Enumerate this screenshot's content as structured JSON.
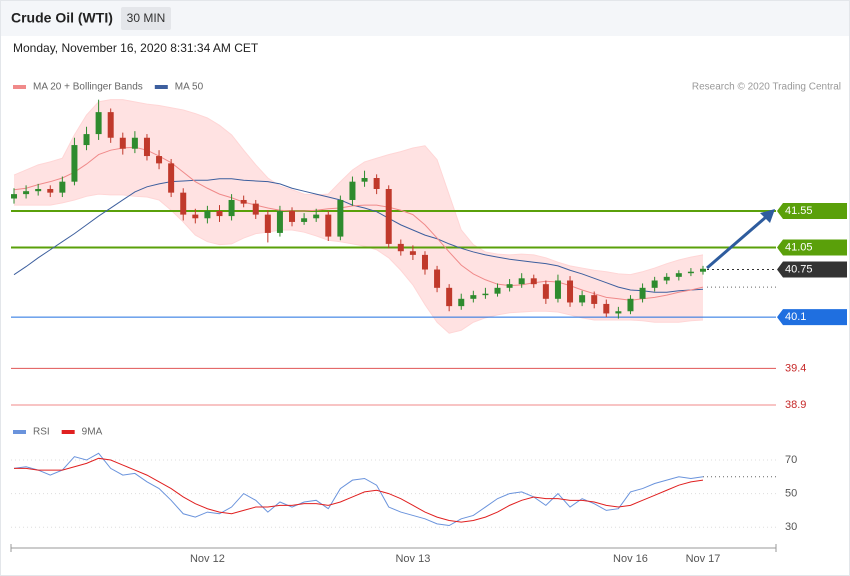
{
  "header": {
    "title": "Crude Oil (WTI)",
    "timeframe": "30 MIN",
    "timestamp": "Monday, November 16, 2020 8:31:34 AM CET"
  },
  "chart_data": [
    {
      "type": "candlestick",
      "source": "Research © 2020 Trading Central",
      "categories": [
        null,
        null,
        null,
        null,
        null,
        null,
        null,
        null,
        null,
        null,
        null,
        null,
        null,
        null,
        null,
        null,
        "Nov 12",
        null,
        null,
        null,
        null,
        null,
        null,
        null,
        null,
        null,
        null,
        null,
        null,
        null,
        null,
        null,
        null,
        "Nov 13",
        null,
        null,
        null,
        null,
        null,
        null,
        null,
        null,
        null,
        null,
        null,
        null,
        null,
        null,
        null,
        null,
        null,
        "Nov 16",
        null,
        null,
        null,
        null,
        null,
        "Nov 17"
      ],
      "open": [
        41.72,
        41.78,
        41.82,
        41.85,
        41.8,
        41.95,
        42.45,
        42.6,
        42.9,
        42.55,
        42.4,
        42.55,
        42.3,
        42.2,
        41.8,
        41.5,
        41.45,
        41.55,
        41.48,
        41.7,
        41.65,
        41.5,
        41.25,
        41.55,
        41.4,
        41.45,
        41.5,
        41.2,
        41.7,
        41.95,
        42.0,
        41.85,
        41.1,
        41.0,
        40.95,
        40.75,
        40.5,
        40.25,
        40.35,
        40.4,
        40.42,
        40.5,
        40.55,
        40.63,
        40.55,
        40.35,
        40.6,
        40.3,
        40.4,
        40.28,
        40.15,
        40.18,
        40.35,
        40.5,
        40.6,
        40.65,
        40.7,
        40.72
      ],
      "high": [
        41.86,
        41.9,
        41.92,
        41.9,
        42.02,
        42.55,
        42.7,
        43.07,
        42.95,
        42.62,
        42.64,
        42.6,
        42.38,
        42.26,
        41.86,
        41.58,
        41.62,
        41.63,
        41.78,
        41.76,
        41.7,
        41.56,
        41.62,
        41.6,
        41.52,
        41.58,
        41.55,
        41.76,
        42.02,
        42.1,
        42.05,
        41.9,
        41.16,
        41.08,
        41.0,
        40.8,
        40.55,
        40.42,
        40.46,
        40.5,
        40.56,
        40.62,
        40.7,
        40.68,
        40.6,
        40.68,
        40.66,
        40.46,
        40.45,
        40.34,
        40.24,
        40.4,
        40.56,
        40.65,
        40.7,
        40.74,
        40.77,
        40.8
      ],
      "low": [
        41.65,
        41.72,
        41.76,
        41.74,
        41.74,
        41.9,
        42.38,
        42.52,
        42.48,
        42.32,
        42.34,
        42.24,
        42.12,
        41.74,
        41.42,
        41.38,
        41.38,
        41.4,
        41.42,
        41.6,
        41.44,
        41.12,
        41.2,
        41.34,
        41.36,
        41.4,
        41.14,
        41.15,
        41.62,
        41.88,
        41.78,
        41.04,
        40.94,
        40.88,
        40.68,
        40.44,
        40.18,
        40.2,
        40.3,
        40.35,
        40.38,
        40.45,
        40.5,
        40.5,
        40.28,
        40.3,
        40.24,
        40.25,
        40.22,
        40.1,
        40.08,
        40.14,
        40.3,
        40.45,
        40.55,
        40.6,
        40.66,
        40.68
      ],
      "close": [
        41.78,
        41.82,
        41.85,
        41.8,
        41.95,
        42.45,
        42.6,
        42.9,
        42.55,
        42.4,
        42.55,
        42.3,
        42.2,
        41.8,
        41.5,
        41.45,
        41.55,
        41.48,
        41.7,
        41.65,
        41.5,
        41.25,
        41.55,
        41.4,
        41.45,
        41.5,
        41.2,
        41.7,
        41.95,
        42.0,
        41.85,
        41.1,
        41.0,
        40.95,
        40.75,
        40.5,
        40.25,
        40.35,
        40.4,
        40.42,
        40.5,
        40.55,
        40.63,
        40.55,
        40.35,
        40.6,
        40.3,
        40.4,
        40.28,
        40.15,
        40.18,
        40.35,
        40.5,
        40.6,
        40.65,
        40.7,
        40.72,
        40.76
      ],
      "up_color": "#2e8b2e",
      "down_color": "#c0392b",
      "series": [
        {
          "name": "MA 20 + Bollinger Bands",
          "color": "#f08a8a",
          "band_color": "#ffd6d6",
          "values": [
            41.84,
            41.86,
            41.91,
            41.95,
            42.0,
            42.08,
            42.19,
            42.32,
            42.38,
            42.41,
            42.42,
            42.38,
            42.3,
            42.21,
            42.08,
            41.95,
            41.86,
            41.78,
            41.73,
            41.67,
            41.63,
            41.59,
            41.56,
            41.55,
            41.55,
            41.56,
            41.58,
            41.59,
            41.62,
            41.63,
            41.63,
            41.6,
            41.56,
            41.5,
            41.36,
            41.18,
            40.99,
            40.81,
            40.69,
            40.61,
            40.55,
            40.53,
            40.54,
            40.57,
            40.59,
            40.58,
            40.53,
            40.47,
            40.42,
            40.37,
            40.35,
            40.33,
            40.35,
            40.37,
            40.4,
            40.44,
            40.47,
            40.51
          ],
          "upper": [
            42.04,
            42.11,
            42.18,
            42.22,
            42.27,
            42.59,
            42.86,
            43.04,
            43.07,
            43.07,
            43.04,
            43.01,
            42.99,
            42.96,
            42.93,
            42.88,
            42.82,
            42.72,
            42.59,
            42.38,
            42.18,
            42.0,
            41.89,
            41.84,
            41.78,
            41.77,
            41.78,
            41.95,
            42.11,
            42.22,
            42.27,
            42.32,
            42.36,
            42.41,
            42.44,
            42.25,
            41.77,
            41.29,
            41.09,
            40.99,
            40.96,
            40.95,
            40.96,
            40.95,
            40.91,
            40.85,
            40.8,
            40.77,
            40.74,
            40.72,
            40.69,
            40.68,
            40.72,
            40.77,
            40.83,
            40.88,
            40.92,
            40.95
          ],
          "lower": [
            41.63,
            41.63,
            41.63,
            41.63,
            41.66,
            41.7,
            41.75,
            41.78,
            41.77,
            41.77,
            41.75,
            41.74,
            41.7,
            41.56,
            41.4,
            41.22,
            41.13,
            41.09,
            41.1,
            41.18,
            41.24,
            41.26,
            41.29,
            41.29,
            41.26,
            41.21,
            41.15,
            41.13,
            41.1,
            41.07,
            41.02,
            40.91,
            40.74,
            40.54,
            40.27,
            40.03,
            39.88,
            39.92,
            40.03,
            40.09,
            40.13,
            40.16,
            40.17,
            40.18,
            40.18,
            40.17,
            40.13,
            40.09,
            40.06,
            40.06,
            40.06,
            40.06,
            40.05,
            40.03,
            40.03,
            40.03,
            40.05,
            40.06
          ]
        },
        {
          "name": "MA 50",
          "color": "#3d5f9e",
          "values": [
            40.68,
            40.79,
            40.91,
            41.02,
            41.13,
            41.24,
            41.36,
            41.48,
            41.59,
            41.7,
            41.81,
            41.88,
            41.92,
            41.95,
            41.96,
            41.97,
            41.97,
            41.99,
            41.99,
            41.97,
            41.96,
            41.95,
            41.92,
            41.86,
            41.82,
            41.78,
            41.74,
            41.7,
            41.63,
            41.59,
            41.54,
            41.45,
            41.36,
            41.29,
            41.22,
            41.17,
            41.1,
            41.04,
            40.99,
            40.95,
            40.92,
            40.89,
            40.87,
            40.85,
            40.83,
            40.8,
            40.74,
            40.69,
            40.63,
            40.57,
            40.51,
            40.47,
            40.46,
            40.44,
            40.44,
            40.46,
            40.47,
            40.48
          ]
        }
      ],
      "levels": [
        {
          "value": 41.55,
          "color": "#5aa00a",
          "line": "solid",
          "label_style": "box"
        },
        {
          "value": 41.05,
          "color": "#5aa00a",
          "line": "solid",
          "label_style": "box"
        },
        {
          "value": 40.75,
          "color": "#333333",
          "line": "dotted",
          "label_style": "box"
        },
        {
          "value": 40.1,
          "color": "#1f6fe0",
          "line": "solid",
          "label_style": "box"
        },
        {
          "value": 39.4,
          "color": "#e05555",
          "line": "solid",
          "label_style": "plain"
        },
        {
          "value": 38.9,
          "color": "#f08a8a",
          "line": "solid",
          "label_style": "plain"
        }
      ],
      "ylim": [
        38.7,
        43.25
      ]
    },
    {
      "type": "line",
      "series": [
        {
          "name": "RSI",
          "color": "#6a93dc",
          "values": [
            65,
            66,
            64,
            61,
            64,
            72,
            70,
            74,
            65,
            61,
            62,
            57,
            53,
            46,
            38,
            36,
            39,
            38,
            42,
            50,
            46,
            39,
            45,
            42,
            45,
            46,
            41,
            53,
            58,
            59,
            55,
            42,
            39,
            37,
            35,
            32,
            31,
            35,
            37,
            42,
            47,
            50,
            51,
            48,
            43,
            50,
            42,
            47,
            44,
            40,
            41,
            51,
            53,
            56,
            58,
            60,
            59,
            60
          ]
        },
        {
          "name": "9MA",
          "color": "#e02020",
          "values": [
            65,
            65,
            64,
            64,
            64,
            66,
            68,
            71,
            70,
            67,
            64,
            61,
            57,
            53,
            48,
            44,
            41,
            39,
            38,
            40,
            42,
            42,
            43,
            43,
            44,
            44,
            43,
            45,
            48,
            51,
            52,
            50,
            47,
            43,
            39,
            36,
            34,
            33,
            34,
            36,
            39,
            43,
            46,
            48,
            47,
            47,
            46,
            46,
            45,
            43,
            42,
            43,
            46,
            49,
            52,
            55,
            57,
            58
          ]
        }
      ],
      "ylim": [
        20,
        80
      ],
      "yticks": [
        30,
        50,
        70
      ],
      "grid": true
    }
  ]
}
